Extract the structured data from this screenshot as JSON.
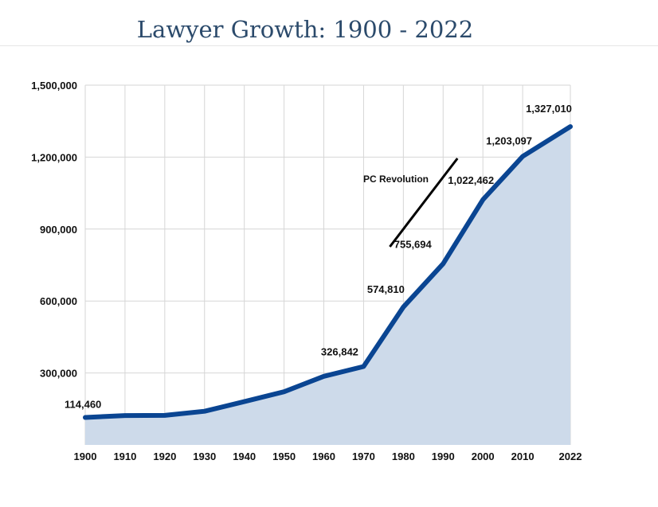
{
  "chart_data": {
    "type": "area",
    "title": "Lawyer Growth: 1900 - 2022",
    "xlabel": "",
    "ylabel": "",
    "x": [
      "1900",
      "1910",
      "1920",
      "1930",
      "1940",
      "1950",
      "1960",
      "1970",
      "1980",
      "1990",
      "2000",
      "2010",
      "2022"
    ],
    "series": [
      {
        "values": [
          114460,
          122519,
          122997,
          140271,
          180483,
          221605,
          285933,
          326842,
          574810,
          755694,
          1022462,
          1203097,
          1327010
        ]
      }
    ],
    "data_labels": [
      {
        "x": "1900",
        "text": "114,460"
      },
      {
        "x": "1970",
        "text": "326,842"
      },
      {
        "x": "1980",
        "text": "574,810"
      },
      {
        "x": "1990",
        "text": "755,694"
      },
      {
        "x": "2000",
        "text": "1,022,462"
      },
      {
        "x": "2010",
        "text": "1,203,097"
      },
      {
        "x": "2022",
        "text": "1,327,010"
      }
    ],
    "y_ticks": [
      {
        "value": 300000,
        "label": "300,000"
      },
      {
        "value": 600000,
        "label": "600,000"
      },
      {
        "value": 900000,
        "label": "900,000"
      },
      {
        "value": 1200000,
        "label": "1,200,000"
      },
      {
        "value": 1500000,
        "label": "1,500,000"
      }
    ],
    "ylim": [
      0,
      1500000
    ],
    "grid": true,
    "legend": "none",
    "annotation": {
      "text": "PC Revolution",
      "x_range": [
        "1975",
        "1992"
      ]
    },
    "colors": {
      "line": "#0a4592",
      "fill": "#cddaea",
      "grid": "#d6d6d6",
      "annotation_line": "#000000"
    }
  }
}
